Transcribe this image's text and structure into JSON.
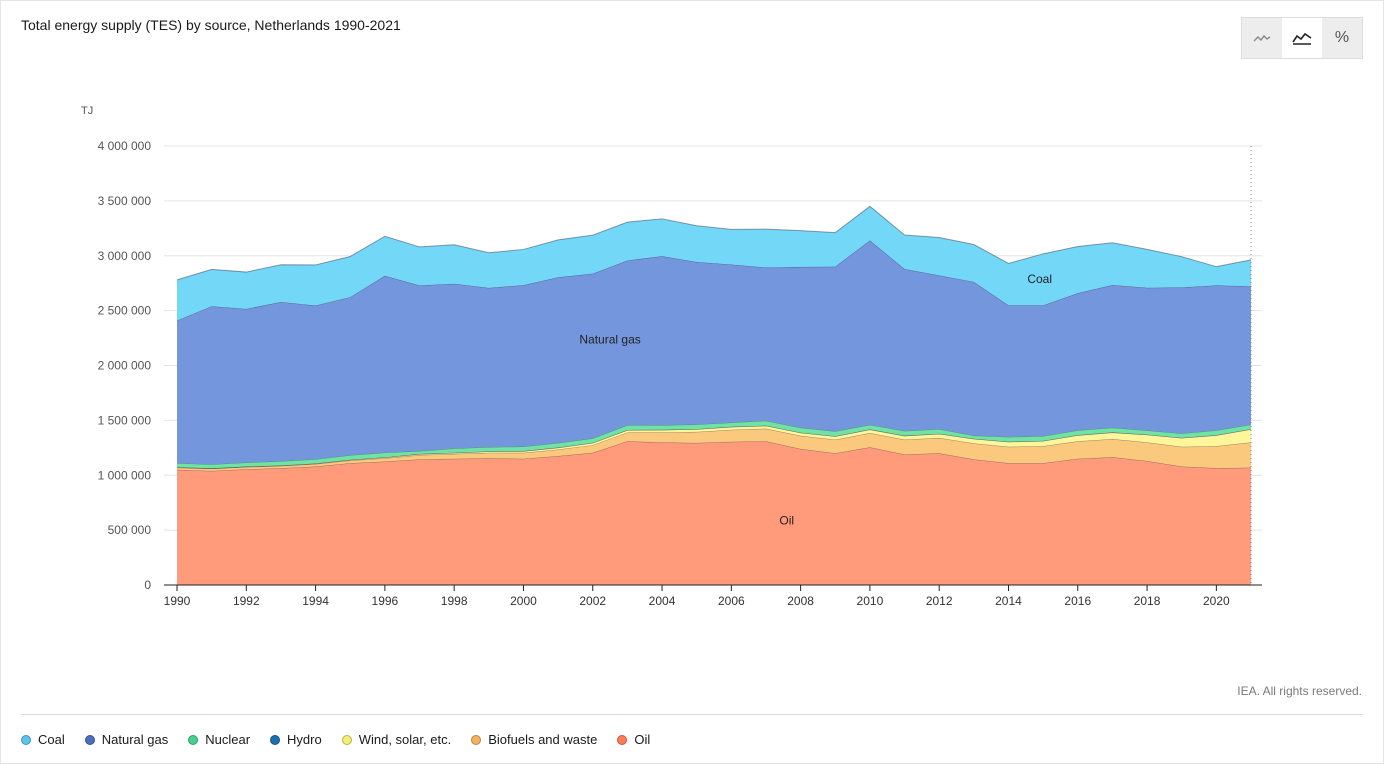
{
  "header": {
    "title": "Total energy supply (TES) by source, Netherlands 1990-2021"
  },
  "view_toggle": {
    "options": [
      {
        "name": "line-chart-icon",
        "active": false
      },
      {
        "name": "area-chart-icon",
        "active": true
      },
      {
        "name": "percent-icon",
        "active": false,
        "glyph": "%"
      }
    ]
  },
  "footer": {
    "credit": "IEA. All rights reserved."
  },
  "chart_data": {
    "type": "area",
    "stacked": true,
    "title": "Total energy supply (TES) by source, Netherlands 1990-2021",
    "ylabel": "TJ",
    "ylim": [
      0,
      4000000
    ],
    "yticks": [
      0,
      500000,
      1000000,
      1500000,
      2000000,
      2500000,
      3000000,
      3500000,
      4000000
    ],
    "ytick_labels": [
      "0",
      "500 000",
      "1 000 000",
      "1 500 000",
      "2 000 000",
      "2 500 000",
      "3 000 000",
      "3 500 000",
      "4 000 000"
    ],
    "xlim": [
      1990,
      2021
    ],
    "xticks": [
      1990,
      1992,
      1994,
      1996,
      1998,
      2000,
      2002,
      2004,
      2006,
      2008,
      2010,
      2012,
      2014,
      2016,
      2018,
      2020
    ],
    "x": [
      1990,
      1991,
      1992,
      1993,
      1994,
      1995,
      1996,
      1997,
      1998,
      1999,
      2000,
      2001,
      2002,
      2003,
      2004,
      2005,
      2006,
      2007,
      2008,
      2009,
      2010,
      2011,
      2012,
      2013,
      2014,
      2015,
      2016,
      2017,
      2018,
      2019,
      2020,
      2021
    ],
    "grid": true,
    "series": [
      {
        "name": "Oil",
        "color": "#ff9a7a",
        "values": [
          1050000,
          1040000,
          1055000,
          1065000,
          1080000,
          1110000,
          1125000,
          1145000,
          1150000,
          1155000,
          1150000,
          1175000,
          1205000,
          1310000,
          1300000,
          1295000,
          1305000,
          1310000,
          1240000,
          1200000,
          1255000,
          1190000,
          1200000,
          1145000,
          1110000,
          1110000,
          1150000,
          1165000,
          1130000,
          1080000,
          1065000,
          1070000
        ]
      },
      {
        "name": "Biofuels and waste",
        "color": "#fbc97e",
        "values": [
          20000,
          20000,
          20000,
          20000,
          22000,
          25000,
          30000,
          40000,
          45000,
          50000,
          55000,
          60000,
          70000,
          80000,
          90000,
          100000,
          110000,
          115000,
          120000,
          125000,
          130000,
          135000,
          140000,
          145000,
          150000,
          155000,
          160000,
          165000,
          170000,
          180000,
          200000,
          230000
        ]
      },
      {
        "name": "Wind, solar, etc.",
        "color": "#fff59a",
        "values": [
          3000,
          3000,
          4000,
          4000,
          5000,
          6000,
          8000,
          9000,
          10000,
          12000,
          15000,
          17000,
          20000,
          22000,
          24000,
          25000,
          26000,
          27000,
          28000,
          30000,
          32000,
          35000,
          38000,
          42000,
          45000,
          48000,
          55000,
          60000,
          70000,
          80000,
          100000,
          120000
        ]
      },
      {
        "name": "Hydro",
        "color": "#2c79c2",
        "values": [
          300,
          400,
          400,
          400,
          400,
          400,
          400,
          400,
          400,
          400,
          500,
          500,
          500,
          500,
          500,
          500,
          500,
          500,
          500,
          500,
          500,
          500,
          500,
          500,
          500,
          500,
          500,
          500,
          500,
          500,
          500,
          500
        ]
      },
      {
        "name": "Nuclear",
        "color": "#6fe3a6",
        "values": [
          37000,
          37000,
          37000,
          39000,
          39000,
          42000,
          44000,
          26000,
          40000,
          40000,
          42000,
          42000,
          42000,
          44000,
          42000,
          43000,
          39000,
          45000,
          45000,
          45000,
          43000,
          44000,
          43000,
          30000,
          44000,
          44000,
          44000,
          43000,
          38000,
          41000,
          45000,
          42000
        ]
      },
      {
        "name": "Natural gas",
        "color": "#7496dd",
        "values": [
          1300000,
          1440000,
          1400000,
          1450000,
          1400000,
          1440000,
          1610000,
          1510000,
          1500000,
          1450000,
          1470000,
          1510000,
          1500000,
          1500000,
          1540000,
          1480000,
          1440000,
          1395000,
          1465000,
          1500000,
          1680000,
          1475000,
          1400000,
          1400000,
          1200000,
          1190000,
          1250000,
          1300000,
          1300000,
          1330000,
          1320000,
          1260000
        ]
      },
      {
        "name": "Coal",
        "color": "#73d8f8",
        "values": [
          370000,
          335000,
          335000,
          340000,
          370000,
          370000,
          360000,
          350000,
          355000,
          320000,
          325000,
          340000,
          350000,
          350000,
          340000,
          330000,
          320000,
          350000,
          330000,
          310000,
          310000,
          310000,
          345000,
          340000,
          380000,
          470000,
          425000,
          385000,
          350000,
          280000,
          170000,
          240000
        ]
      }
    ],
    "annotations": [
      {
        "text": "Oil",
        "x": 2007.6,
        "y": 550000
      },
      {
        "text": "Natural gas",
        "x": 2002.5,
        "y": 2200000
      },
      {
        "text": "Coal",
        "x": 2014.9,
        "y": 2750000
      }
    ],
    "legend": {
      "placement": "bottom-left",
      "items": [
        "Coal",
        "Natural gas",
        "Nuclear",
        "Hydro",
        "Wind, solar, etc.",
        "Biofuels and waste",
        "Oil"
      ],
      "colors": [
        "#5bc4ee",
        "#4a6fbf",
        "#48d08e",
        "#1e6db3",
        "#f5ee72",
        "#f5b25f",
        "#ff7a55"
      ]
    }
  }
}
